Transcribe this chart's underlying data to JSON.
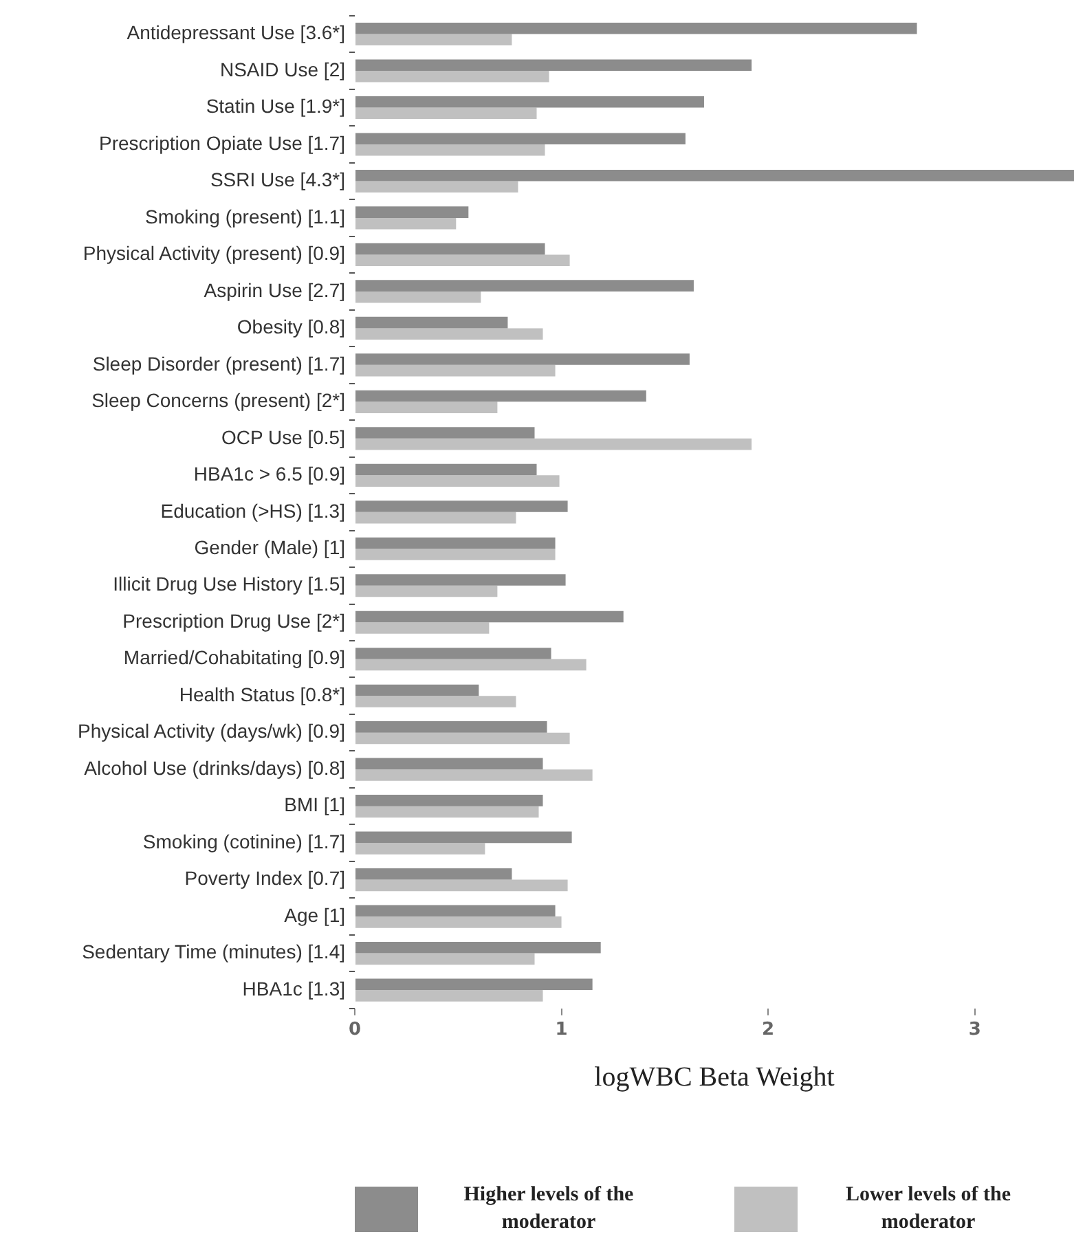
{
  "chart_data": {
    "type": "bar",
    "orientation": "horizontal",
    "xlabel": "logWBC Beta Weight",
    "categories": [
      "Antidepressant Use [3.6*]",
      "NSAID Use [2]",
      "Statin Use [1.9*]",
      "Prescription Opiate Use [1.7]",
      "SSRI Use [4.3*]",
      "Smoking (present) [1.1]",
      "Physical Activity (present) [0.9]",
      "Aspirin Use [2.7]",
      "Obesity [0.8]",
      "Sleep Disorder (present) [1.7]",
      "Sleep Concerns (present) [2*]",
      "OCP Use [0.5]",
      "HBA1c > 6.5 [0.9]",
      "Education (>HS) [1.3]",
      "Gender (Male) [1]",
      "Illicit Drug Use History [1.5]",
      "Prescription Drug Use [2*]",
      "Married/Cohabitating [0.9]",
      "Health Status [0.8*]",
      "Physical Activity (days/wk) [0.9]",
      "Alcohol Use (drinks/days) [0.8]",
      "BMI [1]",
      "Smoking (cotinine) [1.7]",
      "Poverty Index [0.7]",
      "Age [1]",
      "Sedentary Time (minutes) [1.4]",
      "HBA1c [1.3]"
    ],
    "series": [
      {
        "name": "Higher levels of the moderator",
        "color": "#8c8c8c",
        "values": [
          2.72,
          1.92,
          1.69,
          1.6,
          3.48,
          0.55,
          0.92,
          1.64,
          0.74,
          1.62,
          1.41,
          0.87,
          0.88,
          1.03,
          0.97,
          1.02,
          1.3,
          0.95,
          0.6,
          0.93,
          0.91,
          0.91,
          1.05,
          0.76,
          0.97,
          1.19,
          1.15
        ]
      },
      {
        "name": "Lower levels of the moderator",
        "color": "#c0c0c0",
        "values": [
          0.76,
          0.94,
          0.88,
          0.92,
          0.79,
          0.49,
          1.04,
          0.61,
          0.91,
          0.97,
          0.69,
          1.92,
          0.99,
          0.78,
          0.97,
          0.69,
          0.65,
          1.12,
          0.78,
          1.04,
          1.15,
          0.89,
          0.63,
          1.03,
          1.0,
          0.87,
          0.91
        ]
      }
    ],
    "xlim": [
      0,
      3.48
    ],
    "xticks": [
      0,
      1,
      2,
      3
    ],
    "grid": false,
    "legend": "bottom"
  }
}
